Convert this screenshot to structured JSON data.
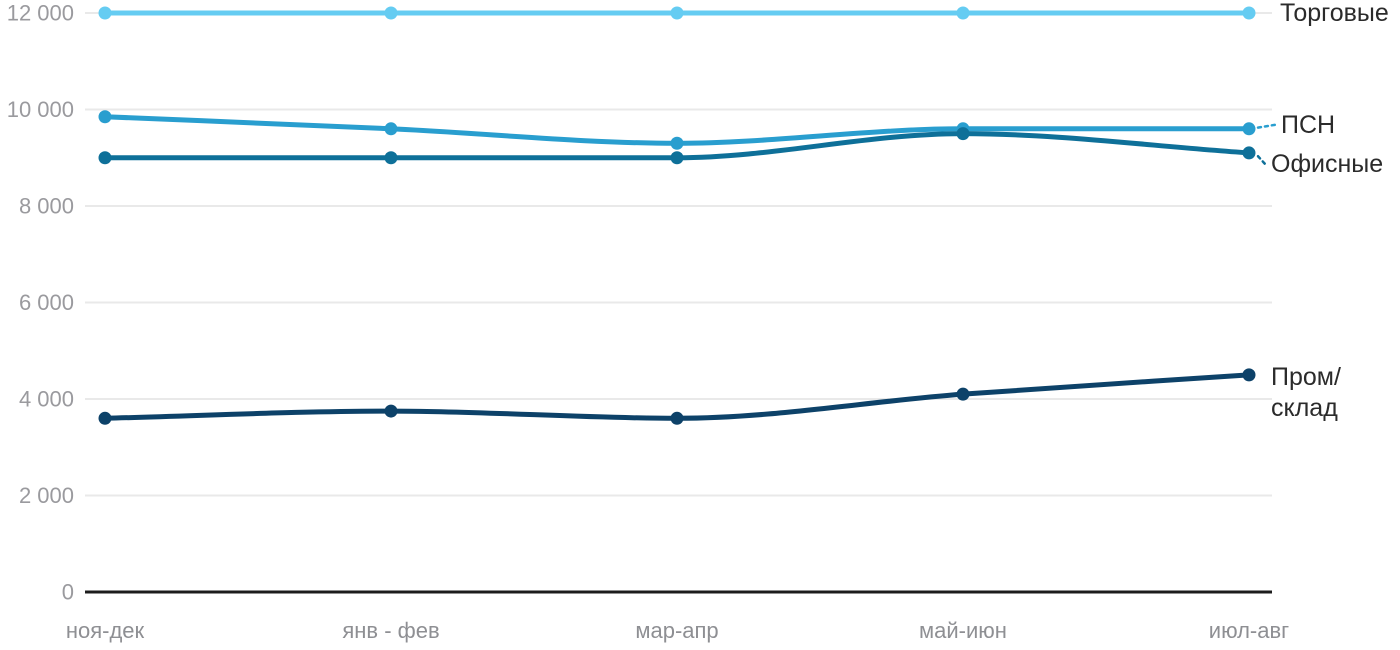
{
  "chart_data": {
    "type": "line",
    "categories": [
      "ноя-дек",
      "янв - фев",
      "мар-апр",
      "май-июн",
      "июл-авг"
    ],
    "series": [
      {
        "name": "Торговые",
        "values": [
          12000,
          12000,
          12000,
          12000,
          12000
        ],
        "color": "#65ccf2"
      },
      {
        "name": "ПСН",
        "values": [
          9850,
          9600,
          9300,
          9600,
          9600
        ],
        "color": "#299ecf"
      },
      {
        "name": "Офисные",
        "values": [
          9000,
          9000,
          9000,
          9500,
          9100
        ],
        "color": "#0e7099"
      },
      {
        "name": "Пром/склад",
        "values": [
          3600,
          3750,
          3600,
          4100,
          4500
        ],
        "color": "#0d4269",
        "label_lines": [
          "Пром/",
          "склад"
        ]
      }
    ],
    "title": "",
    "xlabel": "",
    "ylabel": "",
    "ylim": [
      0,
      12000
    ],
    "ytick_step": 2000,
    "ytick_labels": [
      "0",
      "2 000",
      "4 000",
      "6 000",
      "8 000",
      "10 000",
      "12 000"
    ],
    "grid": true,
    "legend_position": "end-of-line-labels"
  },
  "styles": {
    "grid_color": "#e9e9e9",
    "axis_line_color": "#1c1c1c",
    "ytick_label_color": "#9a9a9e",
    "xtick_label_color": "#8e8f93",
    "series_label_color": "#2b2b2b"
  }
}
